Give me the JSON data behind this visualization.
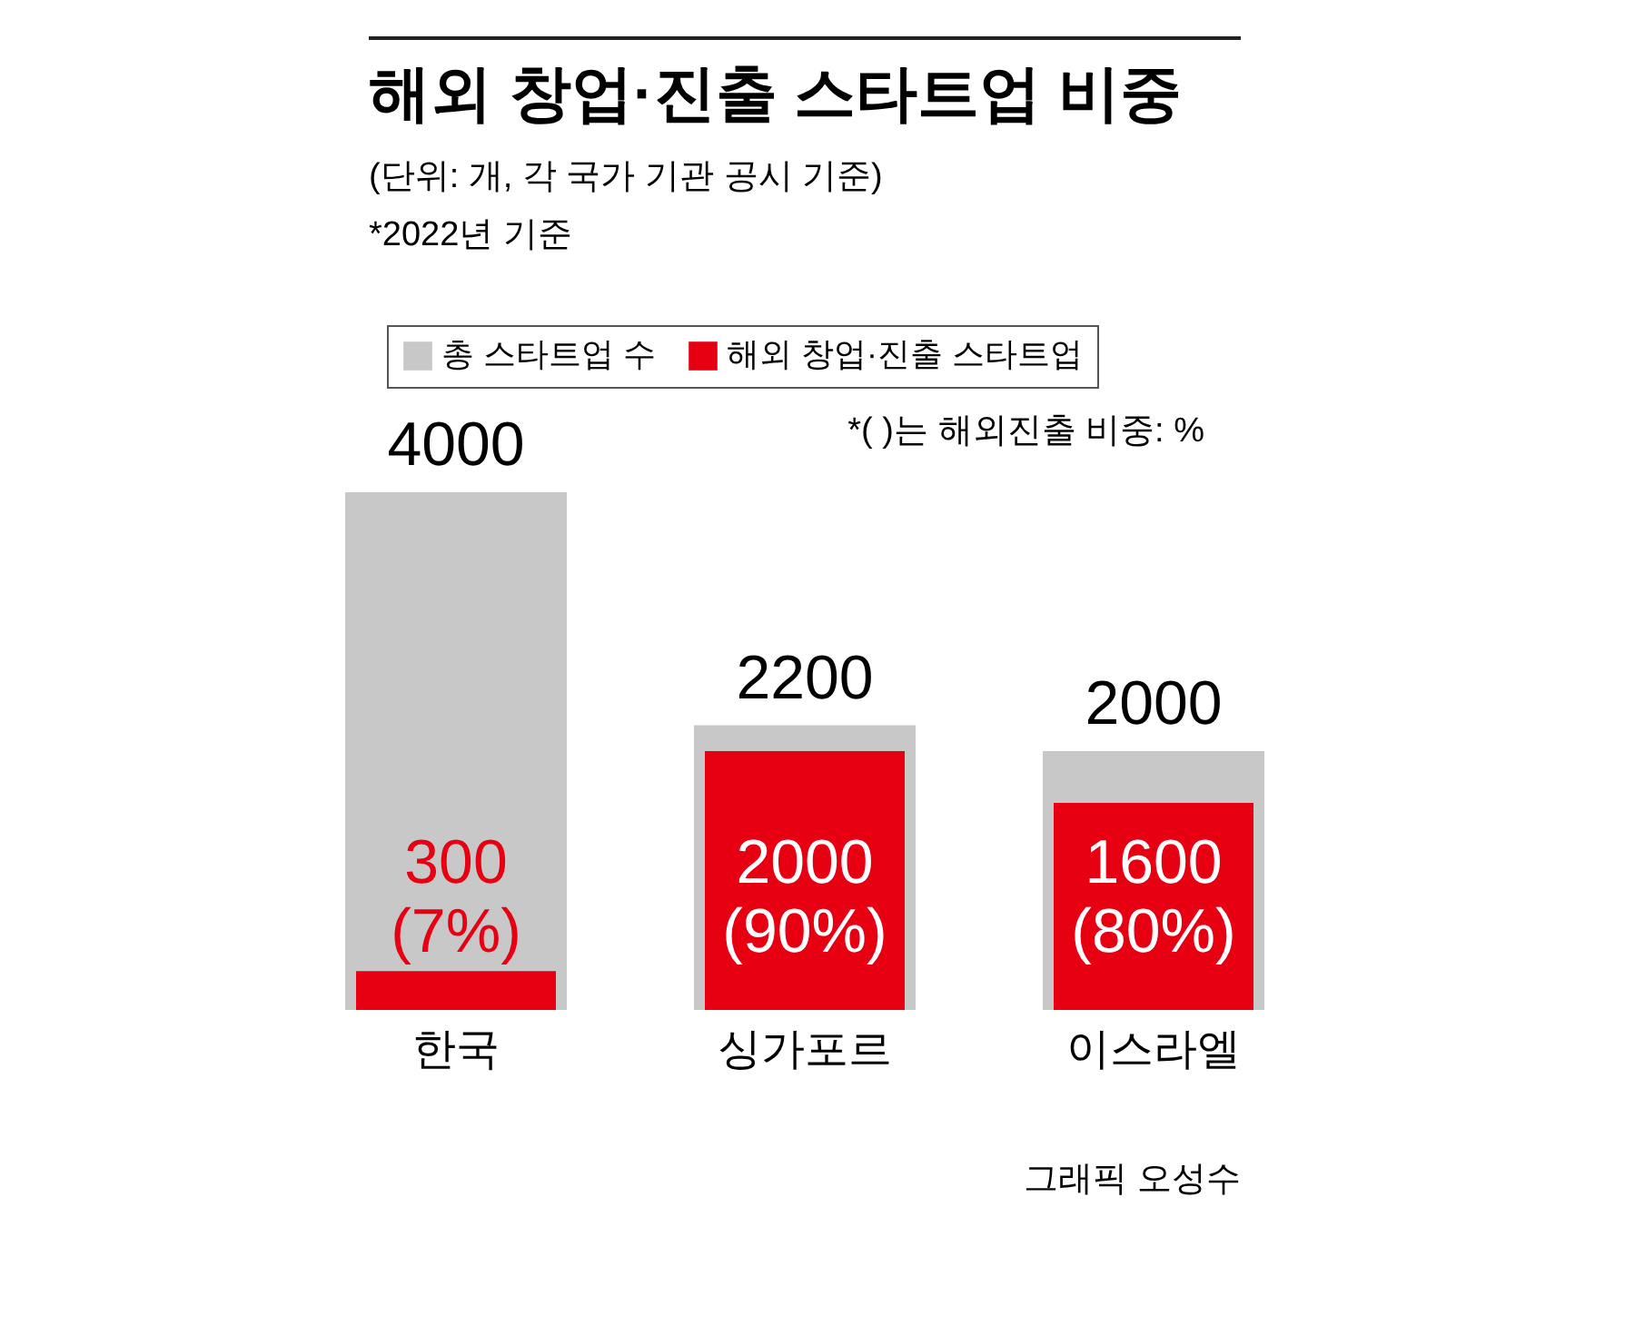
{
  "chart_data": {
    "type": "bar",
    "title": "해외 창업·진출 스타트업 비중",
    "subtitle": "(단위: 개, 각 국가 기관 공시 기준)",
    "annotations": [
      "*2022년 기준",
      "*( )는 해외진출 비중: %",
      "그래픽 오성수"
    ],
    "categories": [
      "한국",
      "싱가포르",
      "이스라엘"
    ],
    "series": [
      {
        "name": "총 스타트업 수",
        "color": "#c8c8c8",
        "values": [
          4000,
          2200,
          2000
        ],
        "value_labels": [
          "4000",
          "2200",
          "2000"
        ]
      },
      {
        "name": "해외 창업·진출 스타트업",
        "color": "#e60012",
        "values": [
          300,
          2000,
          1600
        ],
        "value_labels": [
          "300\n(7%)",
          "2000\n(90%)",
          "1600\n(80%)"
        ]
      }
    ],
    "legend": "top"
  }
}
